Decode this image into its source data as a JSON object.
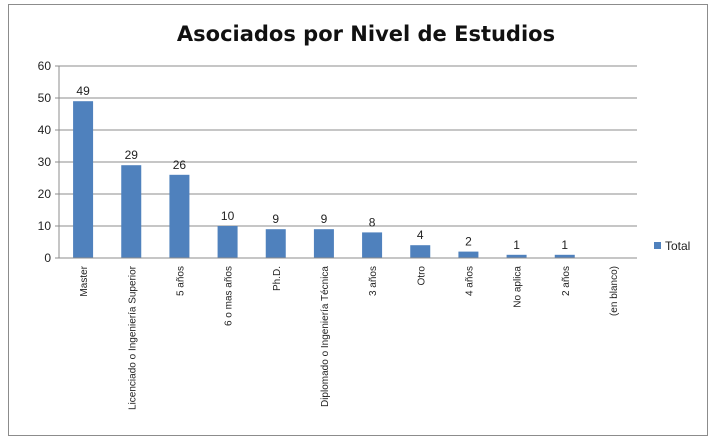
{
  "chart_data": {
    "type": "bar",
    "title": "Asociados por Nivel de Estudios",
    "categories": [
      "Master",
      "Licenciado o Ingeniería Superior",
      "5 años",
      "6 o mas años",
      "Ph.D.",
      "Diplomado o Ingeniería Técnica",
      "3 años",
      "Otro",
      "4 años",
      "No aplica",
      "2 años",
      "(en blanco)"
    ],
    "series": [
      {
        "name": "Total",
        "values": [
          49,
          29,
          26,
          10,
          9,
          9,
          8,
          4,
          2,
          1,
          1,
          null
        ],
        "color": "#4f81bd"
      }
    ],
    "data_labels": [
      "49",
      "29",
      "26",
      "10",
      "9",
      "9",
      "8",
      "4",
      "2",
      "1",
      "1",
      ""
    ],
    "ylim": [
      0,
      60
    ],
    "yticks": [
      0,
      10,
      20,
      30,
      40,
      50,
      60
    ],
    "grid": true,
    "legend_position": "right"
  }
}
